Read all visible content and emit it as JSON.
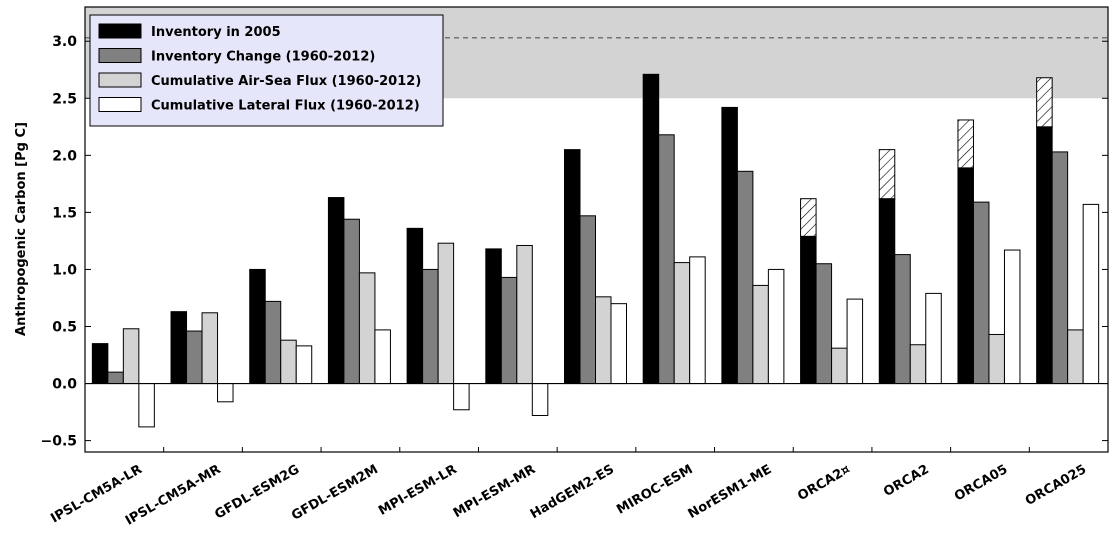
{
  "chart_data": {
    "type": "bar",
    "title": "",
    "xlabel": "",
    "ylabel": "Anthropogenic Carbon [Pg C]",
    "ylim": [
      -0.6,
      3.3
    ],
    "yticks": [
      -0.5,
      0.0,
      0.5,
      1.0,
      1.5,
      2.0,
      2.5,
      3.0
    ],
    "ytick_labels": [
      "−0.5",
      "0.0",
      "0.5",
      "1.0",
      "1.5",
      "2.0",
      "2.5",
      "3.0"
    ],
    "grid": false,
    "legend_position": "top-left",
    "categories": [
      "IPSL-CM5A-LR",
      "IPSL-CM5A-MR",
      "GFDL-ESM2G",
      "GFDL-ESM2M",
      "MPI-ESM-LR",
      "MPI-ESM-MR",
      "HadGEM2-ES",
      "MIROC-ESM",
      "NorESM1-ME",
      "ORCA2¤",
      "ORCA2",
      "ORCA05",
      "ORCA025"
    ],
    "series": [
      {
        "name": "Inventory in 2005",
        "color": "#000000",
        "values": [
          0.35,
          0.63,
          1.0,
          1.63,
          1.36,
          1.18,
          2.05,
          2.71,
          2.42,
          1.29,
          1.62,
          1.89,
          2.25
        ]
      },
      {
        "name": "Inventory Change (1960-2012)",
        "color": "#808080",
        "values": [
          0.1,
          0.46,
          0.72,
          1.44,
          1.0,
          0.93,
          1.47,
          2.18,
          1.86,
          1.05,
          1.13,
          1.59,
          2.03
        ]
      },
      {
        "name": "Cumulative Air-Sea Flux (1960-2012)",
        "color": "#d3d3d3",
        "values": [
          0.48,
          0.62,
          0.38,
          0.97,
          1.23,
          1.21,
          0.76,
          1.06,
          0.86,
          0.31,
          0.34,
          0.43,
          0.47
        ]
      },
      {
        "name": "Cumulative Lateral Flux (1960-2012)",
        "color": "#ffffff",
        "values": [
          -0.38,
          -0.16,
          0.33,
          0.47,
          -0.23,
          -0.28,
          0.7,
          1.11,
          1.0,
          0.74,
          0.79,
          1.17,
          1.57
        ]
      }
    ],
    "hatched_extension": {
      "applies_to": "Inventory in 2005",
      "categories": [
        "ORCA2¤",
        "ORCA2",
        "ORCA05",
        "ORCA025"
      ],
      "tops": [
        1.62,
        2.05,
        2.31,
        2.68
      ]
    },
    "reference_band": {
      "low": 2.5,
      "high": 3.3,
      "color": "#d3d3d3"
    },
    "reference_line": {
      "value": 3.03,
      "style": "dashed",
      "color": "#555555"
    },
    "zero_line": {
      "value": 0.0,
      "color": "#000000"
    },
    "legend_background": "#e6e6fa"
  }
}
